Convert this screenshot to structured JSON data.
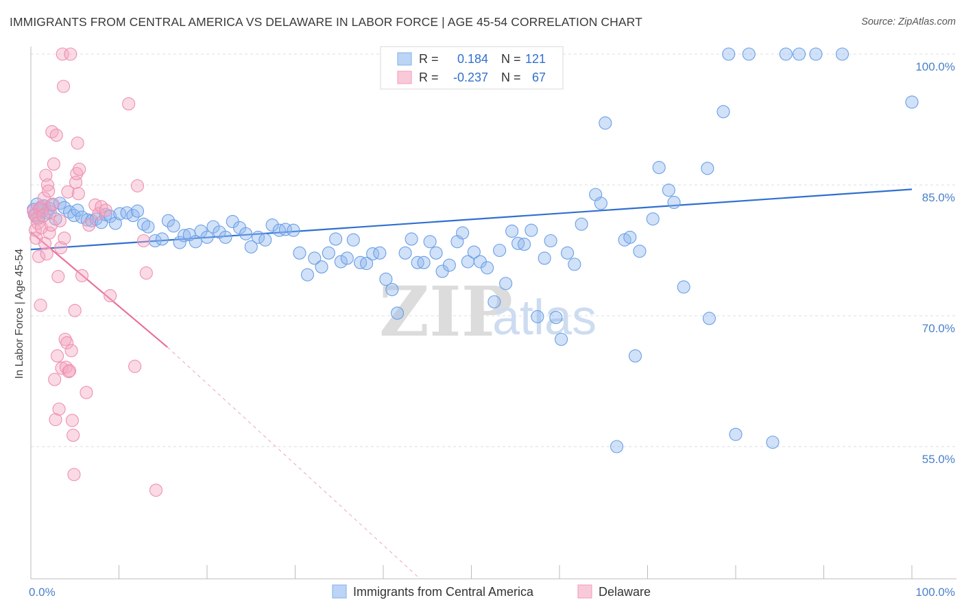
{
  "title": "IMMIGRANTS FROM CENTRAL AMERICA VS DELAWARE IN LABOR FORCE | AGE 45-54 CORRELATION CHART",
  "source": "Source: ZipAtlas.com",
  "watermark": {
    "zip": "ZIP",
    "atlas": "atlas"
  },
  "legend": {
    "rows": [
      {
        "r_label": "R =",
        "r_value": "0.184",
        "n_label": "N =",
        "n_value": "121",
        "color": "#8fb7ef"
      },
      {
        "r_label": "R =",
        "r_value": "-0.237",
        "n_label": "N =",
        "n_value": "67",
        "color": "#f4a7c0"
      }
    ]
  },
  "chart_data": {
    "type": "scatter",
    "xlabel": "",
    "ylabel": "In Labor Force | Age 45-54",
    "xlim": [
      0,
      100
    ],
    "ylim": [
      40,
      100
    ],
    "x_tick_labels": [
      "0.0%",
      "100.0%"
    ],
    "y_ticks": [
      {
        "value": 100,
        "label": "100.0%"
      },
      {
        "value": 85,
        "label": "85.0%"
      },
      {
        "value": 70,
        "label": "70.0%"
      },
      {
        "value": 55,
        "label": "55.0%"
      }
    ],
    "grid": true,
    "legend_position": "bottom",
    "series": [
      {
        "name": "Immigrants from Central America",
        "color": "#8fb7ef",
        "stroke": "#6a9ee6",
        "trend": {
          "x0": 0,
          "y0": 77.6,
          "x1": 100,
          "y1": 84.5,
          "color": "#2f6fcf"
        },
        "points": [
          [
            0.3,
            82.2
          ],
          [
            0.5,
            81.5
          ],
          [
            0.7,
            82.8
          ],
          [
            0.9,
            81.2
          ],
          [
            1.1,
            82.4
          ],
          [
            1.3,
            82.0
          ],
          [
            1.5,
            82.6
          ],
          [
            1.8,
            81.8
          ],
          [
            2.1,
            82.3
          ],
          [
            2.4,
            82.7
          ],
          [
            2.8,
            81.1
          ],
          [
            3.3,
            82.9
          ],
          [
            3.8,
            82.4
          ],
          [
            4.4,
            81.9
          ],
          [
            4.9,
            81.5
          ],
          [
            5.3,
            82.1
          ],
          [
            5.8,
            81.3
          ],
          [
            6.4,
            81.0
          ],
          [
            6.9,
            80.9
          ],
          [
            7.4,
            81.1
          ],
          [
            8.0,
            80.7
          ],
          [
            8.5,
            81.6
          ],
          [
            9.0,
            81.4
          ],
          [
            9.6,
            80.6
          ],
          [
            10.1,
            81.7
          ],
          [
            10.9,
            81.8
          ],
          [
            11.6,
            81.5
          ],
          [
            12.1,
            82.0
          ],
          [
            12.8,
            80.5
          ],
          [
            13.3,
            80.2
          ],
          [
            14.1,
            78.6
          ],
          [
            14.9,
            78.8
          ],
          [
            15.6,
            80.9
          ],
          [
            16.2,
            80.3
          ],
          [
            16.9,
            78.4
          ],
          [
            17.4,
            79.2
          ],
          [
            18.0,
            79.3
          ],
          [
            18.7,
            78.5
          ],
          [
            19.3,
            79.7
          ],
          [
            20.0,
            79.0
          ],
          [
            20.7,
            80.2
          ],
          [
            21.4,
            79.6
          ],
          [
            22.1,
            79.0
          ],
          [
            22.9,
            80.8
          ],
          [
            23.7,
            80.1
          ],
          [
            24.4,
            79.4
          ],
          [
            25.0,
            77.9
          ],
          [
            25.8,
            79.0
          ],
          [
            26.6,
            78.7
          ],
          [
            27.4,
            80.4
          ],
          [
            28.2,
            79.8
          ],
          [
            28.9,
            79.9
          ],
          [
            29.8,
            79.8
          ],
          [
            30.5,
            77.2
          ],
          [
            31.4,
            74.7
          ],
          [
            32.2,
            76.6
          ],
          [
            33.0,
            75.6
          ],
          [
            33.8,
            77.2
          ],
          [
            34.6,
            78.8
          ],
          [
            35.2,
            76.2
          ],
          [
            35.9,
            76.6
          ],
          [
            36.6,
            78.7
          ],
          [
            37.4,
            76.1
          ],
          [
            38.1,
            76.0
          ],
          [
            38.8,
            77.1
          ],
          [
            39.6,
            77.2
          ],
          [
            40.3,
            74.2
          ],
          [
            41.0,
            73.0
          ],
          [
            41.6,
            70.3
          ],
          [
            42.5,
            77.2
          ],
          [
            43.2,
            78.8
          ],
          [
            43.9,
            76.1
          ],
          [
            44.6,
            76.1
          ],
          [
            45.3,
            78.5
          ],
          [
            46.0,
            77.2
          ],
          [
            46.7,
            75.1
          ],
          [
            47.5,
            75.8
          ],
          [
            48.4,
            78.5
          ],
          [
            49.0,
            79.5
          ],
          [
            49.6,
            76.2
          ],
          [
            50.3,
            77.3
          ],
          [
            51.0,
            76.2
          ],
          [
            51.8,
            75.5
          ],
          [
            52.6,
            71.6
          ],
          [
            53.2,
            77.5
          ],
          [
            53.9,
            73.7
          ],
          [
            54.6,
            79.7
          ],
          [
            55.3,
            78.3
          ],
          [
            56.0,
            78.2
          ],
          [
            56.8,
            79.8
          ],
          [
            57.5,
            69.9
          ],
          [
            58.3,
            76.6
          ],
          [
            59.0,
            78.6
          ],
          [
            59.6,
            69.8
          ],
          [
            60.2,
            67.3
          ],
          [
            60.9,
            77.2
          ],
          [
            61.7,
            75.9
          ],
          [
            62.5,
            80.5
          ],
          [
            64.1,
            83.9
          ],
          [
            64.7,
            82.9
          ],
          [
            65.2,
            92.1
          ],
          [
            66.5,
            55.0
          ],
          [
            67.4,
            78.7
          ],
          [
            68.0,
            79.0
          ],
          [
            68.6,
            65.4
          ],
          [
            69.1,
            77.4
          ],
          [
            70.6,
            81.1
          ],
          [
            71.3,
            87.0
          ],
          [
            72.4,
            84.4
          ],
          [
            73.0,
            83.0
          ],
          [
            74.1,
            73.3
          ],
          [
            76.8,
            86.9
          ],
          [
            77.0,
            69.7
          ],
          [
            78.6,
            93.4
          ],
          [
            79.2,
            100.0
          ],
          [
            80.0,
            56.4
          ],
          [
            81.5,
            100.0
          ],
          [
            84.2,
            55.5
          ],
          [
            85.7,
            100.0
          ],
          [
            87.2,
            100.0
          ],
          [
            89.1,
            100.0
          ],
          [
            92.1,
            100.0
          ],
          [
            100.0,
            94.5
          ]
        ]
      },
      {
        "name": "Delaware",
        "color": "#f4a7c0",
        "stroke": "#ee8fb0",
        "trend": {
          "x0": 0,
          "y0": 79.6,
          "x1": 15.5,
          "y1": 66.4,
          "color": "#e8709b"
        },
        "trend_extension": {
          "x0": 15.5,
          "y0": 66.4,
          "x1": 44.0,
          "y1": 40.0
        },
        "points": [
          [
            0.3,
            82.0
          ],
          [
            0.4,
            81.6
          ],
          [
            0.5,
            79.8
          ],
          [
            0.6,
            78.9
          ],
          [
            0.7,
            81.2
          ],
          [
            0.8,
            80.6
          ],
          [
            0.9,
            76.8
          ],
          [
            1.0,
            82.3
          ],
          [
            1.1,
            71.2
          ],
          [
            1.2,
            80.1
          ],
          [
            1.3,
            82.5
          ],
          [
            1.4,
            81.5
          ],
          [
            1.5,
            83.5
          ],
          [
            1.6,
            78.3
          ],
          [
            1.7,
            86.1
          ],
          [
            1.8,
            77.1
          ],
          [
            1.9,
            85.0
          ],
          [
            2.0,
            84.3
          ],
          [
            2.1,
            79.5
          ],
          [
            2.2,
            81.9
          ],
          [
            2.3,
            80.4
          ],
          [
            2.4,
            91.1
          ],
          [
            2.5,
            82.8
          ],
          [
            2.6,
            87.4
          ],
          [
            2.7,
            62.7
          ],
          [
            2.8,
            58.1
          ],
          [
            2.9,
            90.7
          ],
          [
            3.0,
            65.4
          ],
          [
            3.1,
            74.5
          ],
          [
            3.2,
            59.3
          ],
          [
            3.3,
            80.9
          ],
          [
            3.4,
            77.8
          ],
          [
            3.5,
            64.0
          ],
          [
            3.6,
            100.0
          ],
          [
            3.7,
            96.3
          ],
          [
            3.8,
            78.9
          ],
          [
            3.9,
            67.3
          ],
          [
            4.0,
            64.1
          ],
          [
            4.1,
            66.9
          ],
          [
            4.2,
            84.2
          ],
          [
            4.3,
            63.6
          ],
          [
            4.4,
            63.7
          ],
          [
            4.5,
            100.0
          ],
          [
            4.6,
            66.0
          ],
          [
            4.7,
            58.0
          ],
          [
            4.8,
            56.3
          ],
          [
            4.9,
            51.8
          ],
          [
            5.0,
            70.6
          ],
          [
            5.1,
            85.3
          ],
          [
            5.2,
            86.3
          ],
          [
            5.3,
            89.8
          ],
          [
            5.4,
            84.0
          ],
          [
            5.5,
            86.8
          ],
          [
            5.8,
            74.6
          ],
          [
            6.3,
            61.2
          ],
          [
            6.6,
            80.4
          ],
          [
            7.3,
            82.7
          ],
          [
            7.7,
            81.7
          ],
          [
            8.0,
            82.5
          ],
          [
            8.5,
            82.1
          ],
          [
            9.0,
            72.3
          ],
          [
            11.1,
            94.3
          ],
          [
            11.8,
            64.2
          ],
          [
            12.1,
            84.9
          ],
          [
            12.8,
            78.6
          ],
          [
            13.1,
            74.9
          ],
          [
            14.2,
            50.0
          ]
        ]
      }
    ]
  },
  "bottom_legend": [
    {
      "label": "Immigrants from Central America",
      "color": "#8fb7ef"
    },
    {
      "label": "Delaware",
      "color": "#f4a7c0"
    }
  ]
}
